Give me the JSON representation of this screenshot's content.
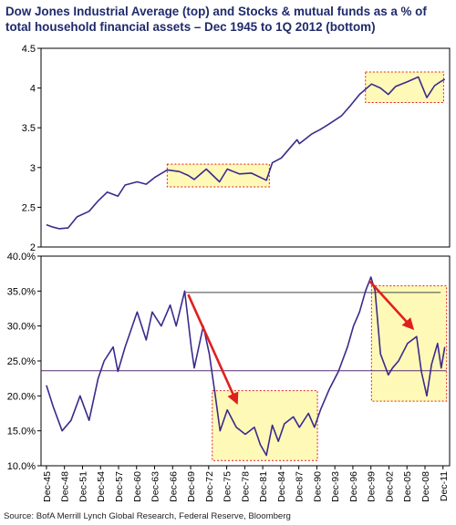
{
  "title": "Dow Jones Industrial Average (top) and Stocks & mutual funds as a % of total household financial assets – Dec 1945 to 1Q 2012 (bottom)",
  "source": "Source: BofA Merrill Lynch Global Research, Federal Reserve, Bloomberg",
  "colors": {
    "line": "#3b2a8c",
    "arrow": "#e02020",
    "box_border": "#e02020",
    "box_fill": "#fff7a0",
    "title": "#1f2a6b",
    "hline": "#5b2a6e"
  },
  "chart_data": [
    {
      "type": "line",
      "title": "",
      "xlabel": "",
      "ylabel": "",
      "yscale": "log10",
      "ylim": [
        2,
        4.5
      ],
      "yticks": [
        "2",
        "2.5",
        "3",
        "3.5",
        "4",
        "4.5"
      ],
      "grid": false,
      "series": [
        {
          "x": [
            1945.9,
            1947,
            1948,
            1949.5,
            1951,
            1953,
            1954.5,
            1956,
            1957.8,
            1959,
            1961,
            1962.5,
            1964,
            1966,
            1968,
            1969.5,
            1970.5,
            1972.5,
            1974.7,
            1976,
            1978,
            1980,
            1982.5,
            1983.5,
            1985,
            1987.6,
            1988,
            1990,
            1991.5,
            1993,
            1995,
            1996.5,
            1998,
            2000,
            2001.5,
            2002.8,
            2004,
            2006,
            2007.8,
            2009.2,
            2010.5,
            2011.5,
            2012.2
          ],
          "values": [
            2.28,
            2.25,
            2.23,
            2.24,
            2.38,
            2.45,
            2.58,
            2.69,
            2.64,
            2.78,
            2.82,
            2.79,
            2.88,
            2.97,
            2.95,
            2.9,
            2.85,
            2.98,
            2.82,
            2.98,
            2.92,
            2.93,
            2.84,
            3.06,
            3.12,
            3.35,
            3.3,
            3.42,
            3.48,
            3.55,
            3.65,
            3.78,
            3.92,
            4.05,
            4.0,
            3.92,
            4.02,
            4.08,
            4.14,
            3.88,
            4.03,
            4.08,
            4.11
          ]
        }
      ],
      "highlight_ranges": [
        [
          1966,
          1983
        ],
        [
          1999,
          2012
        ]
      ]
    },
    {
      "type": "line",
      "title": "",
      "xlabel": "",
      "ylabel": "",
      "ylim": [
        10,
        40
      ],
      "yticks": [
        "10.0%",
        "15.0%",
        "20.0%",
        "25.0%",
        "30.0%",
        "35.0%",
        "40.0%"
      ],
      "categories": [
        "Dec-45",
        "Dec-48",
        "Dec-51",
        "Dec-54",
        "Dec-57",
        "Dec-60",
        "Dec-63",
        "Dec-66",
        "Dec-69",
        "Dec-72",
        "Dec-75",
        "Dec-78",
        "Dec-81",
        "Dec-84",
        "Dec-87",
        "Dec-90",
        "Dec-93",
        "Dec-96",
        "Dec-99",
        "Dec-02",
        "Dec-05",
        "Dec-08",
        "Dec-11"
      ],
      "series": [
        {
          "x": [
            1945.9,
            1947,
            1948.5,
            1950,
            1951.5,
            1953,
            1954.5,
            1955.5,
            1957,
            1957.8,
            1959,
            1961,
            1962.5,
            1963.5,
            1965,
            1966.5,
            1967.5,
            1968.9,
            1970,
            1970.5,
            1972,
            1973,
            1974,
            1974.8,
            1976,
            1977.5,
            1979,
            1980.5,
            1981.5,
            1982.5,
            1983.5,
            1984.5,
            1985.5,
            1987,
            1988,
            1989.5,
            1990.5,
            1991.5,
            1993,
            1994.5,
            1996,
            1997,
            1998,
            1999,
            1999.9,
            2000.6,
            2001.5,
            2002.8,
            2003.5,
            2004.5,
            2006,
            2007.5,
            2008.3,
            2009.2,
            2010,
            2011,
            2011.6,
            2012.2
          ],
          "values": [
            21.5,
            18.5,
            15,
            16.5,
            20,
            16.5,
            22.5,
            25,
            27,
            23.5,
            27,
            32,
            28,
            32,
            30,
            33,
            30,
            35,
            27,
            24,
            30,
            26,
            20,
            15,
            18,
            15.5,
            14.5,
            15.5,
            13,
            11.5,
            15.8,
            13.5,
            16,
            17,
            15.5,
            17.5,
            15.5,
            18,
            21,
            23.5,
            27,
            30,
            32,
            35,
            37,
            35,
            26,
            23,
            24,
            25,
            27.5,
            28.5,
            23.5,
            20,
            24.5,
            27.5,
            24,
            27
          ]
        }
      ],
      "hlines": [
        {
          "y": 34.8,
          "x_from": 1969,
          "x_to": 2011.5
        },
        {
          "y": 23.6,
          "x_from": 1945,
          "x_to": 2012.5
        }
      ],
      "highlight_ranges": [
        [
          1973.5,
          1991
        ],
        [
          2000,
          2012.5
        ]
      ]
    }
  ]
}
